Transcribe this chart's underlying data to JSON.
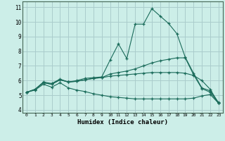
{
  "xlabel": "Humidex (Indice chaleur)",
  "bg_color": "#cceee8",
  "grid_color": "#aacccc",
  "line_color": "#1a6b5a",
  "xlim": [
    -0.5,
    23.5
  ],
  "ylim": [
    3.8,
    11.4
  ],
  "xticks": [
    0,
    1,
    2,
    3,
    4,
    5,
    6,
    7,
    8,
    9,
    10,
    11,
    12,
    13,
    14,
    15,
    16,
    17,
    18,
    19,
    20,
    21,
    22,
    23
  ],
  "yticks": [
    4,
    5,
    6,
    7,
    8,
    9,
    10,
    11
  ],
  "line1_y": [
    5.2,
    5.4,
    5.9,
    5.8,
    6.1,
    5.9,
    6.0,
    6.15,
    6.2,
    6.25,
    7.4,
    8.5,
    7.5,
    9.85,
    9.85,
    10.9,
    10.4,
    9.9,
    9.2,
    7.6,
    6.5,
    5.5,
    5.3,
    4.5
  ],
  "line2_y": [
    5.2,
    5.4,
    5.85,
    5.75,
    6.05,
    5.9,
    5.95,
    6.05,
    6.15,
    6.2,
    6.45,
    6.55,
    6.65,
    6.8,
    7.0,
    7.2,
    7.35,
    7.45,
    7.55,
    7.55,
    6.4,
    5.45,
    5.2,
    4.45
  ],
  "line3_y": [
    5.2,
    5.4,
    5.85,
    5.75,
    6.05,
    5.9,
    5.95,
    6.05,
    6.15,
    6.2,
    6.3,
    6.35,
    6.4,
    6.45,
    6.5,
    6.55,
    6.55,
    6.55,
    6.55,
    6.5,
    6.35,
    6.0,
    5.4,
    4.45
  ],
  "line4_y": [
    5.2,
    5.35,
    5.75,
    5.55,
    5.85,
    5.5,
    5.35,
    5.25,
    5.1,
    5.0,
    4.9,
    4.85,
    4.8,
    4.75,
    4.75,
    4.75,
    4.75,
    4.75,
    4.75,
    4.75,
    4.8,
    4.95,
    5.05,
    4.45
  ]
}
